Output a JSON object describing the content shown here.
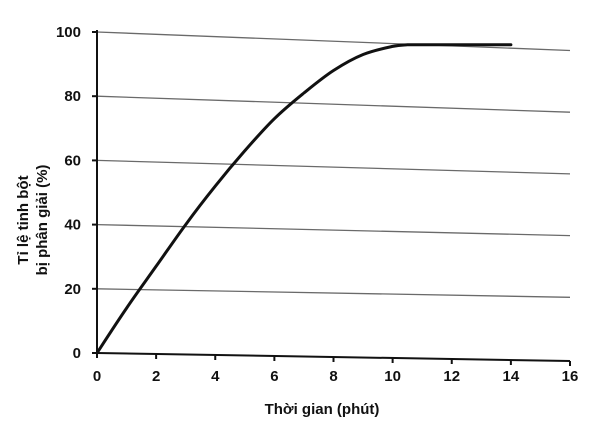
{
  "chart_data": {
    "type": "line",
    "xlabel": "Thời gian (phút)",
    "ylabel_lines": [
      "Tỉ lệ tinh bột",
      "bị phân giải (%)"
    ],
    "xlim": [
      0,
      16
    ],
    "ylim": [
      0,
      100
    ],
    "x_ticks": [
      "0",
      "2",
      "4",
      "6",
      "8",
      "10",
      "12",
      "14",
      "16"
    ],
    "y_ticks": [
      "0",
      "20",
      "40",
      "60",
      "80",
      "100"
    ],
    "grid": true,
    "series": [
      {
        "x": [
          0,
          1,
          2,
          3,
          4,
          5,
          6,
          7,
          8,
          9,
          10,
          10.5,
          11,
          12,
          13,
          14
        ],
        "y": [
          0,
          14,
          27,
          40,
          52,
          63,
          73,
          81,
          88,
          93,
          95.5,
          96,
          96,
          96,
          96,
          96
        ]
      }
    ]
  }
}
